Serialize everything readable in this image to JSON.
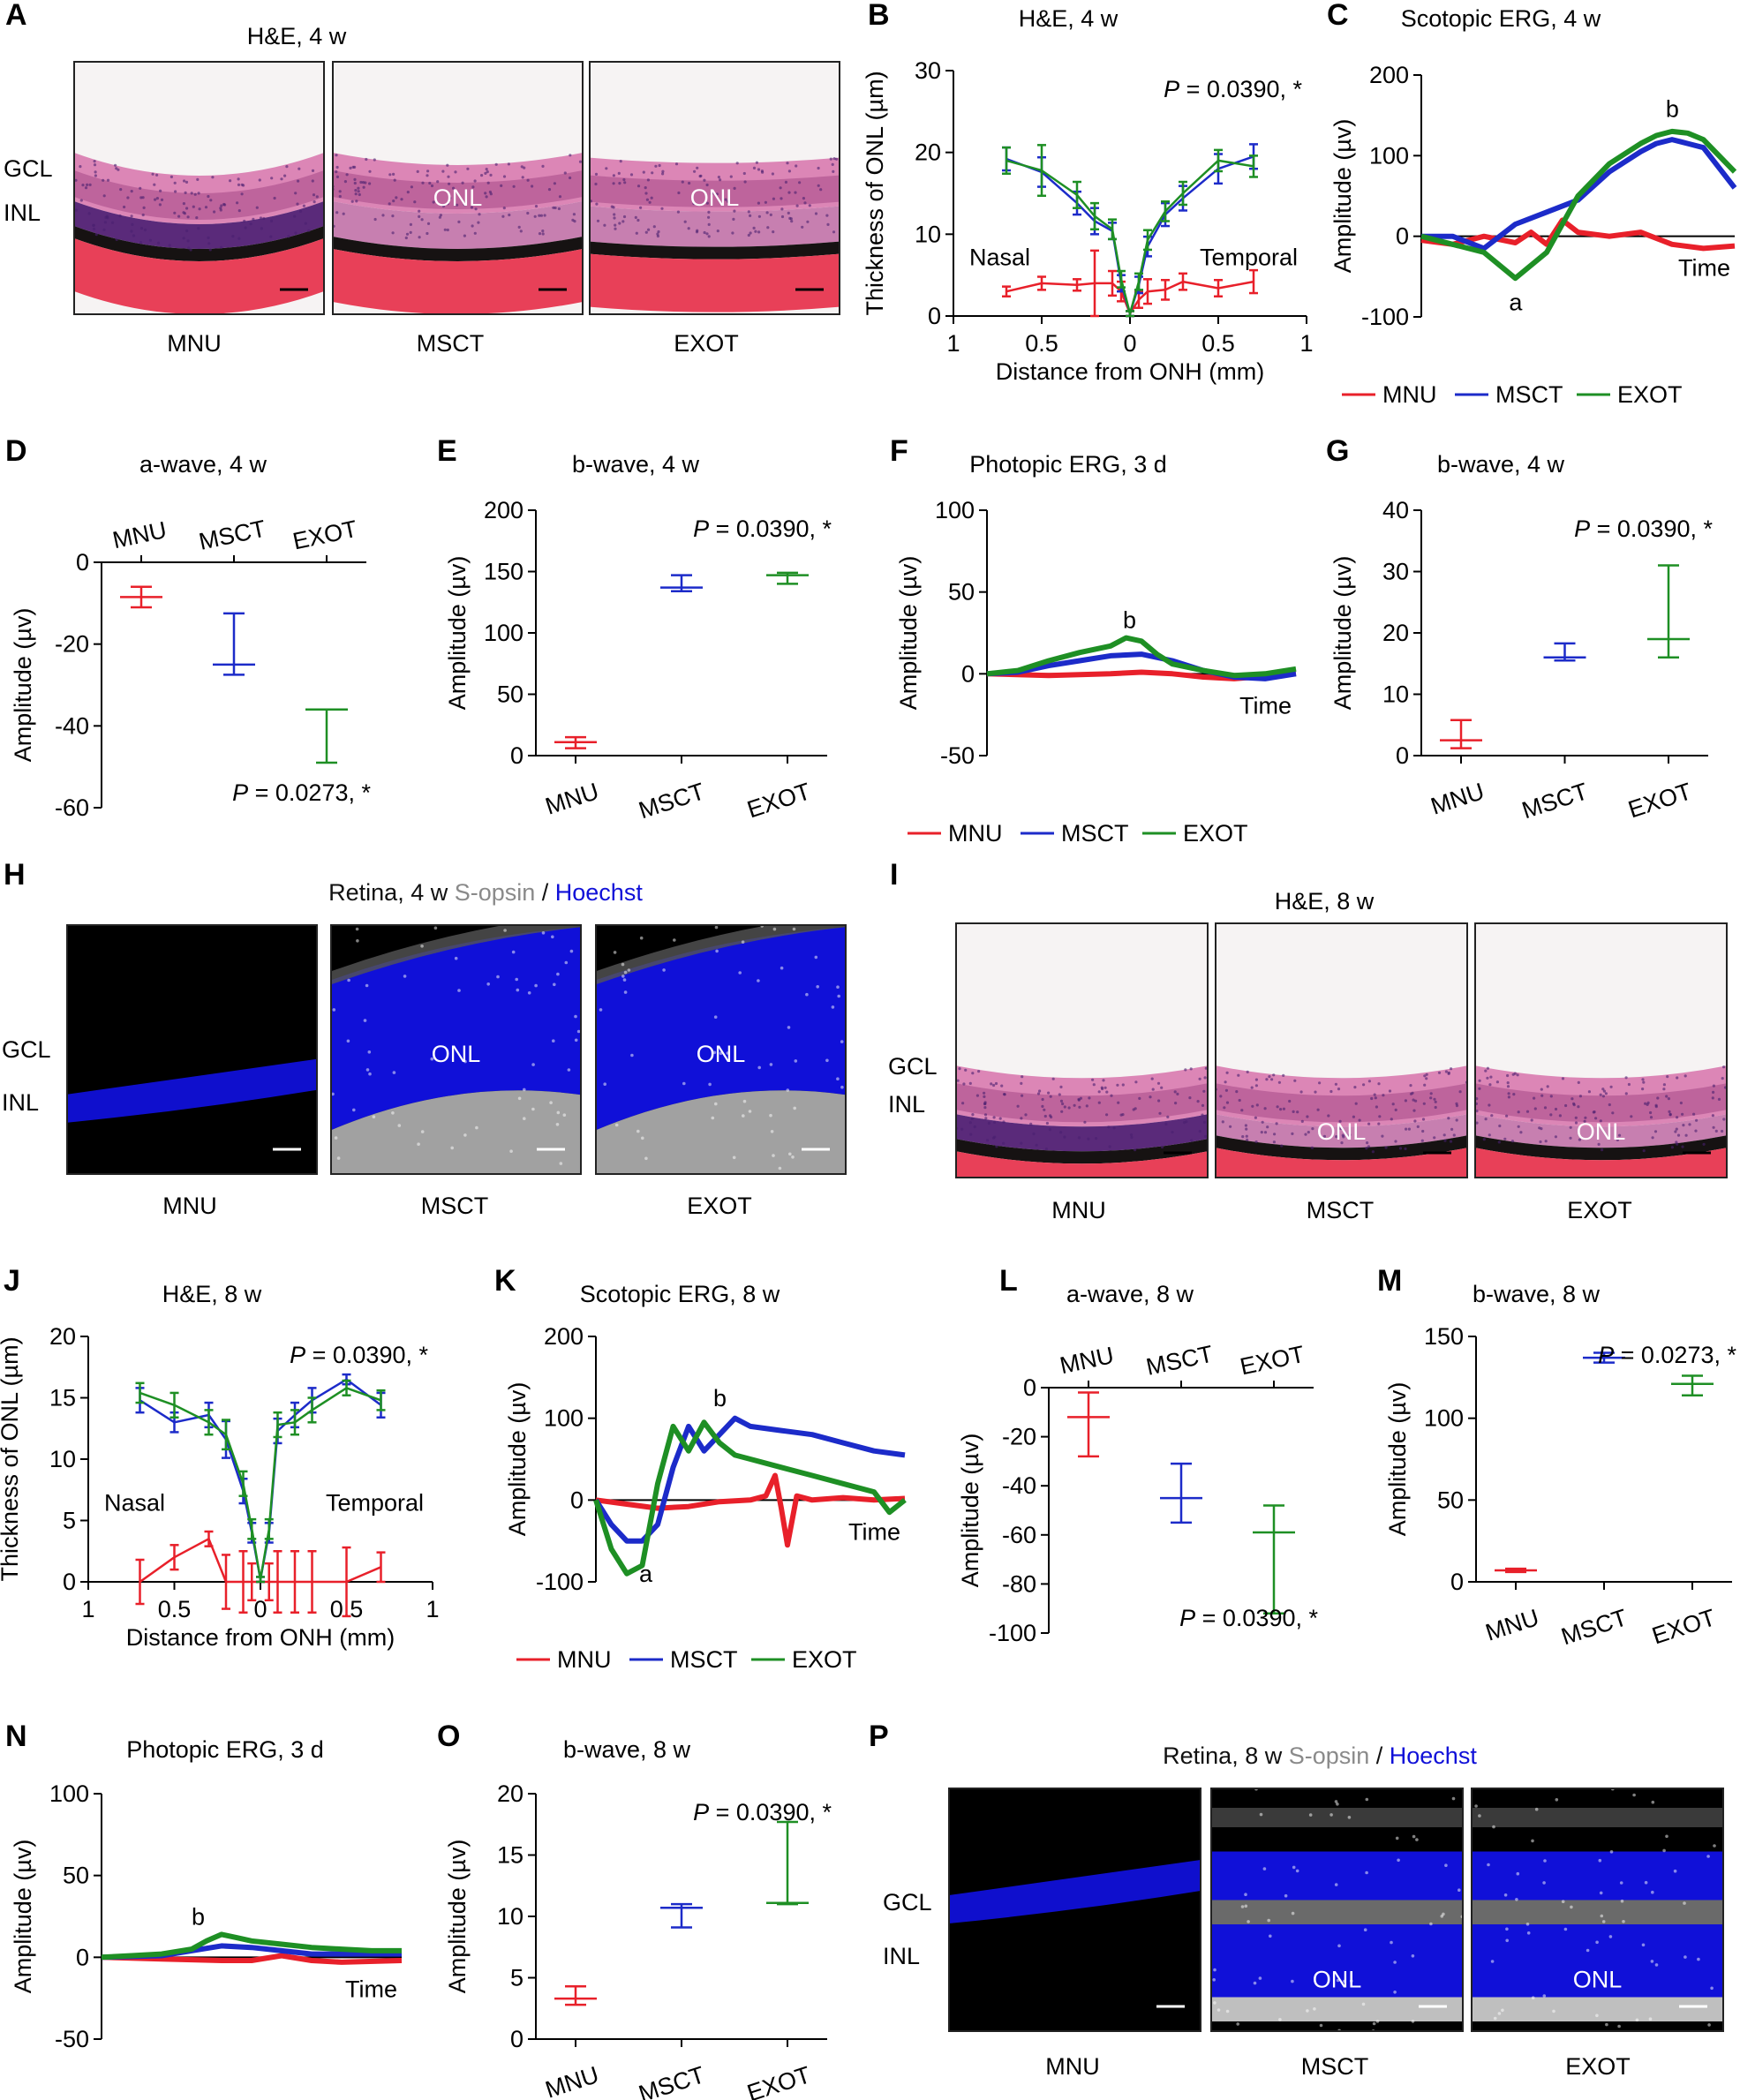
{
  "colors": {
    "MNU": "#e8202a",
    "MSCT": "#1c2bc9",
    "EXOT": "#1e8f24",
    "hoechst": "#1010d8",
    "sopsin": "#8a8a8a",
    "he_pink": "#d46aa0",
    "he_dark": "#1a1a1a"
  },
  "legend": [
    "MNU",
    "MSCT",
    "EXOT"
  ],
  "panels": {
    "A": {
      "letter": "A",
      "title": "H&E, 4 w",
      "layers": [
        "GCL",
        "INL"
      ],
      "images": [
        {
          "label": "MNU",
          "inner": ""
        },
        {
          "label": "MSCT",
          "inner": "ONL"
        },
        {
          "label": "EXOT",
          "inner": "ONL"
        }
      ]
    },
    "H": {
      "letter": "H",
      "title_parts": [
        "Retina, 4 w ",
        "S-opsin",
        " / ",
        "Hoechst"
      ],
      "layers": [
        "GCL",
        "INL"
      ],
      "images": [
        {
          "label": "MNU",
          "inner": ""
        },
        {
          "label": "MSCT",
          "inner": "ONL"
        },
        {
          "label": "EXOT",
          "inner": "ONL"
        }
      ]
    },
    "I": {
      "letter": "I",
      "title": "H&E, 8 w",
      "layers": [
        "GCL",
        "INL"
      ],
      "images": [
        {
          "label": "MNU",
          "inner": ""
        },
        {
          "label": "MSCT",
          "inner": "ONL"
        },
        {
          "label": "EXOT",
          "inner": "ONL"
        }
      ]
    },
    "P": {
      "letter": "P",
      "title_parts": [
        "Retina, 8 w ",
        "S-opsin",
        " / ",
        "Hoechst"
      ],
      "layers": [
        "GCL",
        "INL"
      ],
      "images": [
        {
          "label": "MNU",
          "inner": ""
        },
        {
          "label": "MSCT",
          "inner": "ONL"
        },
        {
          "label": "EXOT",
          "inner": "ONL"
        }
      ]
    }
  },
  "chart_data": [
    {
      "id": "B",
      "type": "line",
      "letter": "B",
      "title": "H&E, 4 w",
      "ylabel": "Thickness of ONL (µm)",
      "xlabel": "Distance from ONH (mm)",
      "xlim": [
        -1,
        1
      ],
      "ylim": [
        0,
        30
      ],
      "yticks": [
        "0",
        "10",
        "20",
        "30"
      ],
      "xticks": [
        "1",
        "0.5",
        "0",
        "0.5",
        "1"
      ],
      "xtickvals": [
        -1,
        -0.5,
        0,
        0.5,
        1
      ],
      "pvalue": "P = 0.0390, *",
      "notes": [
        "Nasal",
        "Temporal"
      ],
      "x": [
        -0.7,
        -0.5,
        -0.3,
        -0.2,
        -0.1,
        -0.05,
        0,
        0.05,
        0.1,
        0.2,
        0.3,
        0.5,
        0.7
      ],
      "series": [
        {
          "name": "MNU",
          "values": [
            3,
            4,
            3.8,
            4,
            4,
            3,
            0.3,
            2,
            3,
            3.2,
            4.2,
            3.4,
            4.2
          ],
          "err": [
            0.6,
            0.8,
            0.7,
            4,
            1.5,
            1.2,
            0.3,
            1,
            1.5,
            1.2,
            1,
            1,
            1.4
          ]
        },
        {
          "name": "MSCT",
          "values": [
            19.2,
            17.6,
            13.8,
            11.6,
            10.4,
            4,
            0.3,
            3.8,
            8.5,
            12.4,
            14.4,
            18,
            19.5
          ],
          "err": [
            1.4,
            1.8,
            1.4,
            1.6,
            1,
            1,
            0.3,
            1,
            1.2,
            1.4,
            1.5,
            1.8,
            1.5
          ]
        },
        {
          "name": "EXOT",
          "values": [
            19,
            17.8,
            14.8,
            12.2,
            10.6,
            4.5,
            0.3,
            4.2,
            9.3,
            12.8,
            15,
            19,
            18.3
          ],
          "err": [
            1.6,
            3.1,
            1.6,
            1.6,
            1.2,
            1,
            0.3,
            1,
            1.2,
            1.2,
            1.4,
            1.3,
            1.3
          ]
        }
      ]
    },
    {
      "id": "C",
      "type": "line",
      "letter": "C",
      "title": "Scotopic ERG, 4 w",
      "ylabel": "Amplitude (µv)",
      "xaxis_label": "Time",
      "xlim": [
        0,
        1
      ],
      "ylim": [
        -100,
        200
      ],
      "yticks": [
        "-100",
        "0",
        "100",
        "200"
      ],
      "yzero": true,
      "notes": [
        "a",
        "b"
      ],
      "legend": true,
      "series": [
        {
          "name": "MNU",
          "x": [
            0,
            0.1,
            0.2,
            0.3,
            0.35,
            0.4,
            0.45,
            0.5,
            0.6,
            0.7,
            0.8,
            0.9,
            1
          ],
          "values": [
            -5,
            -10,
            0,
            -8,
            5,
            -10,
            20,
            5,
            0,
            5,
            -10,
            -15,
            -12
          ]
        },
        {
          "name": "MSCT",
          "x": [
            0,
            0.1,
            0.2,
            0.3,
            0.4,
            0.5,
            0.6,
            0.7,
            0.75,
            0.8,
            0.85,
            0.9,
            1
          ],
          "values": [
            0,
            0,
            -15,
            15,
            30,
            45,
            80,
            105,
            115,
            120,
            115,
            110,
            60
          ]
        },
        {
          "name": "EXOT",
          "x": [
            0,
            0.1,
            0.2,
            0.3,
            0.4,
            0.5,
            0.6,
            0.7,
            0.75,
            0.8,
            0.85,
            0.9,
            1
          ],
          "values": [
            0,
            -10,
            -20,
            -52,
            -20,
            50,
            90,
            115,
            125,
            130,
            128,
            120,
            80
          ]
        }
      ]
    },
    {
      "id": "D",
      "type": "scatter",
      "letter": "D",
      "title": "a-wave, 4 w",
      "ylabel": "Amplitude (µv)",
      "categories": [
        "MNU",
        "MSCT",
        "EXOT"
      ],
      "cat_top": true,
      "ylim": [
        -60,
        0
      ],
      "yticks": [
        "-60",
        "-40",
        "-20",
        "0"
      ],
      "pvalue": "P = 0.0273, *",
      "series": [
        {
          "name": "MNU",
          "mean": -8.5,
          "lo": -11,
          "hi": -6
        },
        {
          "name": "MSCT",
          "mean": -25,
          "lo": -27.5,
          "hi": -12.5
        },
        {
          "name": "EXOT",
          "mean": -36,
          "lo": -49,
          "hi": -36
        }
      ]
    },
    {
      "id": "E",
      "type": "scatter",
      "letter": "E",
      "title": "b-wave, 4 w",
      "ylabel": "Amplitude (µv)",
      "categories": [
        "MNU",
        "MSCT",
        "EXOT"
      ],
      "ylim": [
        0,
        200
      ],
      "yticks": [
        "0",
        "50",
        "100",
        "150",
        "200"
      ],
      "pvalue": "P = 0.0390, *",
      "series": [
        {
          "name": "MNU",
          "mean": 11,
          "lo": 6,
          "hi": 15
        },
        {
          "name": "MSCT",
          "mean": 137,
          "lo": 134,
          "hi": 147
        },
        {
          "name": "EXOT",
          "mean": 147,
          "lo": 140,
          "hi": 149
        }
      ]
    },
    {
      "id": "F",
      "type": "line",
      "letter": "F",
      "title": "Photopic ERG, 3 d",
      "ylabel": "Amplitude (µv)",
      "xaxis_label": "Time",
      "xlim": [
        0,
        1
      ],
      "ylim": [
        -50,
        100
      ],
      "yticks": [
        "-50",
        "0",
        "50",
        "100"
      ],
      "yzero": true,
      "notes": [
        "b"
      ],
      "legend": true,
      "series": [
        {
          "name": "MNU",
          "x": [
            0,
            0.2,
            0.4,
            0.5,
            0.6,
            0.7,
            0.8,
            1
          ],
          "values": [
            0,
            -1,
            0,
            1,
            0,
            -2,
            -3,
            0
          ]
        },
        {
          "name": "MSCT",
          "x": [
            0,
            0.1,
            0.2,
            0.3,
            0.4,
            0.5,
            0.6,
            0.7,
            0.8,
            0.9,
            1
          ],
          "values": [
            0,
            1,
            5,
            8,
            11,
            12,
            8,
            2,
            -2,
            -3,
            0
          ]
        },
        {
          "name": "EXOT",
          "x": [
            0,
            0.1,
            0.2,
            0.3,
            0.4,
            0.45,
            0.5,
            0.55,
            0.6,
            0.7,
            0.8,
            0.9,
            1
          ],
          "values": [
            0,
            2,
            8,
            13,
            17,
            22,
            20,
            12,
            6,
            2,
            -1,
            0,
            3
          ]
        }
      ]
    },
    {
      "id": "G",
      "type": "scatter",
      "letter": "G",
      "title": "b-wave, 4 w",
      "ylabel": "Amplitude (µv)",
      "categories": [
        "MNU",
        "MSCT",
        "EXOT"
      ],
      "ylim": [
        0,
        40
      ],
      "yticks": [
        "0",
        "10",
        "20",
        "30",
        "40"
      ],
      "pvalue": "P = 0.0390, *",
      "series": [
        {
          "name": "MNU",
          "mean": 2.5,
          "lo": 1.2,
          "hi": 5.8
        },
        {
          "name": "MSCT",
          "mean": 16,
          "lo": 15.5,
          "hi": 18.3
        },
        {
          "name": "EXOT",
          "mean": 19,
          "lo": 16,
          "hi": 31
        }
      ]
    },
    {
      "id": "J",
      "type": "line",
      "letter": "J",
      "title": "H&E, 8 w",
      "ylabel": "Thickness of ONL (µm)",
      "xlabel": "Distance from ONH (mm)",
      "xlim": [
        -1,
        1
      ],
      "ylim": [
        0,
        20
      ],
      "yticks": [
        "0",
        "5",
        "10",
        "15",
        "20"
      ],
      "xticks": [
        "1",
        "0.5",
        "0",
        "0.5",
        "1"
      ],
      "xtickvals": [
        -1,
        -0.5,
        0,
        0.5,
        1
      ],
      "pvalue": "P = 0.0390, *",
      "notes": [
        "Nasal",
        "Temporal"
      ],
      "x": [
        -0.7,
        -0.5,
        -0.3,
        -0.2,
        -0.1,
        -0.05,
        0,
        0.05,
        0.1,
        0.2,
        0.3,
        0.5,
        0.7
      ],
      "series": [
        {
          "name": "MNU",
          "values": [
            0,
            2,
            3.5,
            0,
            0,
            0,
            0,
            0,
            0,
            0,
            0,
            0,
            1.2
          ],
          "err": [
            1.8,
            1,
            0.6,
            2.2,
            2.5,
            1.5,
            0,
            1.5,
            2.5,
            2.5,
            2.5,
            2.8,
            1.2
          ]
        },
        {
          "name": "MSCT",
          "values": [
            14.8,
            13,
            13.6,
            11.6,
            7.4,
            4,
            0.2,
            4,
            12.3,
            13.6,
            14.8,
            16.5,
            14.4
          ],
          "err": [
            1,
            0.8,
            1,
            1.5,
            1,
            0.8,
            0.2,
            0.8,
            1,
            1,
            1,
            0.4,
            1
          ]
        },
        {
          "name": "EXOT",
          "values": [
            15.4,
            14.4,
            13,
            12,
            8,
            4.3,
            0.2,
            4.3,
            12.8,
            13,
            14,
            15.8,
            14.8
          ],
          "err": [
            0.8,
            1,
            1,
            1.2,
            1,
            0.8,
            0.2,
            0.8,
            1,
            1,
            1,
            0.6,
            0.8
          ]
        }
      ]
    },
    {
      "id": "K",
      "type": "line",
      "letter": "K",
      "title": "Scotopic ERG, 8 w",
      "ylabel": "Amplitude (µv)",
      "xaxis_label": "Time",
      "xlim": [
        0,
        1
      ],
      "ylim": [
        -100,
        200
      ],
      "yticks": [
        "-100",
        "0",
        "100",
        "200"
      ],
      "yzero": true,
      "notes": [
        "a",
        "b"
      ],
      "legend": true,
      "series": [
        {
          "name": "MNU",
          "x": [
            0,
            0.1,
            0.2,
            0.3,
            0.4,
            0.5,
            0.55,
            0.58,
            0.6,
            0.62,
            0.65,
            0.7,
            0.8,
            0.9,
            1
          ],
          "values": [
            0,
            -5,
            -10,
            -8,
            -2,
            0,
            5,
            30,
            -10,
            -55,
            5,
            0,
            3,
            0,
            2
          ]
        },
        {
          "name": "MSCT",
          "x": [
            0,
            0.05,
            0.1,
            0.15,
            0.2,
            0.25,
            0.3,
            0.35,
            0.4,
            0.45,
            0.5,
            0.6,
            0.7,
            0.8,
            0.9,
            1
          ],
          "values": [
            0,
            -30,
            -50,
            -50,
            -30,
            40,
            90,
            60,
            80,
            100,
            90,
            85,
            80,
            70,
            60,
            55
          ]
        },
        {
          "name": "EXOT",
          "x": [
            0,
            0.05,
            0.1,
            0.15,
            0.2,
            0.25,
            0.3,
            0.35,
            0.4,
            0.45,
            0.5,
            0.6,
            0.7,
            0.8,
            0.9,
            0.95,
            1
          ],
          "values": [
            0,
            -60,
            -90,
            -80,
            20,
            90,
            60,
            95,
            70,
            55,
            50,
            40,
            30,
            20,
            10,
            -15,
            0
          ]
        }
      ]
    },
    {
      "id": "L",
      "type": "scatter",
      "letter": "L",
      "title": "a-wave, 8 w",
      "ylabel": "Amplitude (µv)",
      "categories": [
        "MNU",
        "MSCT",
        "EXOT"
      ],
      "cat_top": true,
      "ylim": [
        -100,
        0
      ],
      "yticks": [
        "-100",
        "-80",
        "-60",
        "-40",
        "-20",
        "0"
      ],
      "pvalue": "P = 0.0390, *",
      "series": [
        {
          "name": "MNU",
          "mean": -12,
          "lo": -28,
          "hi": -2
        },
        {
          "name": "MSCT",
          "mean": -45,
          "lo": -55,
          "hi": -31
        },
        {
          "name": "EXOT",
          "mean": -59,
          "lo": -92,
          "hi": -48
        }
      ]
    },
    {
      "id": "M",
      "type": "scatter",
      "letter": "M",
      "title": "b-wave, 8 w",
      "ylabel": "Amplitude (µv)",
      "categories": [
        "MNU",
        "MSCT",
        "EXOT"
      ],
      "ylim": [
        0,
        150
      ],
      "yticks": [
        "0",
        "50",
        "100",
        "150"
      ],
      "pvalue": "P = 0.0273, *",
      "series": [
        {
          "name": "MNU",
          "mean": 7,
          "lo": 6,
          "hi": 8
        },
        {
          "name": "MSCT",
          "mean": 137,
          "lo": 134,
          "hi": 140
        },
        {
          "name": "EXOT",
          "mean": 121,
          "lo": 114,
          "hi": 126
        }
      ]
    },
    {
      "id": "N",
      "type": "line",
      "letter": "N",
      "title": "Photopic ERG, 3 d",
      "ylabel": "Amplitude (µv)",
      "xaxis_label": "Time",
      "xlim": [
        0,
        1
      ],
      "ylim": [
        -50,
        100
      ],
      "yticks": [
        "-50",
        "0",
        "50",
        "100"
      ],
      "yzero": true,
      "notes": [
        "b"
      ],
      "legend": true,
      "series": [
        {
          "name": "MNU",
          "x": [
            0,
            0.2,
            0.4,
            0.5,
            0.6,
            0.7,
            0.8,
            1
          ],
          "values": [
            0,
            -1,
            -2,
            -2,
            1,
            -2,
            -3,
            -2
          ]
        },
        {
          "name": "MSCT",
          "x": [
            0,
            0.2,
            0.3,
            0.4,
            0.5,
            0.6,
            0.7,
            0.8,
            1
          ],
          "values": [
            0,
            1,
            4,
            7,
            6,
            4,
            2,
            2,
            2
          ]
        },
        {
          "name": "EXOT",
          "x": [
            0,
            0.1,
            0.2,
            0.3,
            0.35,
            0.4,
            0.45,
            0.5,
            0.6,
            0.7,
            0.8,
            0.9,
            1
          ],
          "values": [
            0,
            1,
            2,
            5,
            10,
            14,
            12,
            10,
            8,
            6,
            5,
            4,
            4
          ]
        }
      ]
    },
    {
      "id": "O",
      "type": "scatter",
      "letter": "O",
      "title": "b-wave, 8 w",
      "ylabel": "Amplitude (µv)",
      "categories": [
        "MNU",
        "MSCT",
        "EXOT"
      ],
      "ylim": [
        0,
        20
      ],
      "yticks": [
        "0",
        "5",
        "10",
        "15",
        "20"
      ],
      "pvalue": "P = 0.0390, *",
      "series": [
        {
          "name": "MNU",
          "mean": 3.3,
          "lo": 2.8,
          "hi": 4.3
        },
        {
          "name": "MSCT",
          "mean": 10.7,
          "lo": 9.1,
          "hi": 11
        },
        {
          "name": "EXOT",
          "mean": 11.1,
          "lo": 11,
          "hi": 17.7
        }
      ]
    }
  ]
}
